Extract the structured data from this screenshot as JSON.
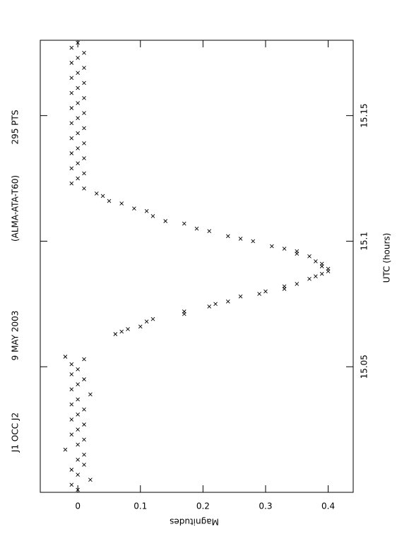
{
  "chart_data": {
    "type": "scatter",
    "title_parts": [
      "J1 OCC J2",
      "9 MAY 2003",
      "(ALMA-ATA-T60)",
      "295 PTS"
    ],
    "x_label": "UTC (hours)",
    "y_label": "Magnitudes",
    "xlim": [
      15.0,
      15.18
    ],
    "xticks": [
      15.05,
      15.1,
      15.15
    ],
    "ylim": [
      -0.06,
      0.44
    ],
    "yticks": [
      0,
      0.1,
      0.2,
      0.3,
      0.4
    ],
    "color": "#000000",
    "marker": "x",
    "x": [
      15.001,
      15.003,
      15.005,
      15.007,
      15.009,
      15.011,
      15.013,
      15.015,
      15.017,
      15.019,
      15.021,
      15.023,
      15.025,
      15.027,
      15.029,
      15.031,
      15.033,
      15.035,
      15.037,
      15.039,
      15.041,
      15.043,
      15.045,
      15.047,
      15.049,
      15.051,
      15.053,
      15.054,
      15.063,
      15.064,
      15.065,
      15.066,
      15.068,
      15.069,
      15.071,
      15.072,
      15.074,
      15.075,
      15.076,
      15.078,
      15.079,
      15.08,
      15.081,
      15.082,
      15.083,
      15.085,
      15.086,
      15.087,
      15.088,
      15.089,
      15.09,
      15.091,
      15.092,
      15.094,
      15.095,
      15.096,
      15.097,
      15.098,
      15.1,
      15.101,
      15.102,
      15.104,
      15.105,
      15.107,
      15.108,
      15.11,
      15.112,
      15.113,
      15.115,
      15.116,
      15.118,
      15.119,
      15.121,
      15.123,
      15.125,
      15.127,
      15.129,
      15.131,
      15.133,
      15.135,
      15.137,
      15.139,
      15.141,
      15.143,
      15.145,
      15.147,
      15.149,
      15.151,
      15.153,
      15.155,
      15.157,
      15.159,
      15.161,
      15.163,
      15.165,
      15.167,
      15.169,
      15.171,
      15.173,
      15.175,
      15.177,
      15.179
    ],
    "values": [
      0.0,
      -0.01,
      0.02,
      0.0,
      -0.01,
      0.01,
      0.0,
      0.01,
      -0.02,
      0.0,
      0.01,
      -0.01,
      0.0,
      0.01,
      -0.01,
      0.0,
      0.01,
      -0.01,
      0.0,
      0.02,
      -0.01,
      0.0,
      0.01,
      -0.01,
      0.0,
      -0.01,
      0.01,
      -0.02,
      0.06,
      0.07,
      0.08,
      0.1,
      0.11,
      0.12,
      0.17,
      0.17,
      0.21,
      0.22,
      0.24,
      0.26,
      0.29,
      0.3,
      0.33,
      0.33,
      0.35,
      0.37,
      0.38,
      0.39,
      0.4,
      0.4,
      0.39,
      0.39,
      0.38,
      0.37,
      0.35,
      0.35,
      0.33,
      0.31,
      0.28,
      0.26,
      0.24,
      0.21,
      0.19,
      0.17,
      0.14,
      0.12,
      0.11,
      0.09,
      0.07,
      0.05,
      0.04,
      0.03,
      0.01,
      -0.01,
      0.0,
      0.01,
      -0.01,
      0.0,
      0.01,
      -0.01,
      0.0,
      0.01,
      -0.01,
      0.0,
      0.01,
      -0.01,
      0.0,
      0.01,
      -0.01,
      0.0,
      0.01,
      -0.01,
      0.0,
      0.01,
      -0.01,
      0.0,
      0.01,
      -0.01,
      0.0,
      0.01,
      -0.01,
      0.0
    ]
  }
}
